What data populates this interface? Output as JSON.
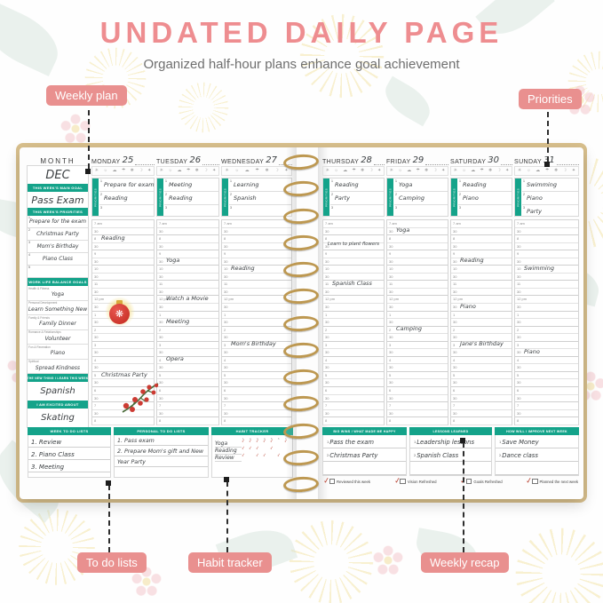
{
  "header": {
    "title": "UNDATED DAILY PAGE",
    "subtitle": "Organized half-hour plans enhance goal achievement"
  },
  "callouts": {
    "weekly_plan": "Weekly plan",
    "priorities": "Priorities",
    "to_do_lists": "To do lists",
    "habit_tracker": "Habit tracker",
    "weekly_recap": "Weekly recap"
  },
  "colors": {
    "teal_accent": "#14a38a",
    "pink_accent": "#e9908f",
    "title_pink": "#ee8d90",
    "check_red": "#b8402f",
    "spiral_gold": "#bd9851"
  },
  "planner": {
    "month_label": "MONTH",
    "month_value": "DEC",
    "priorities_tab": "PRIORITIES",
    "weather_icons": [
      "sun",
      "bright-sun",
      "cloud",
      "umbrella",
      "snowflake",
      "moon",
      "star"
    ],
    "time_slots": [
      "7 am",
      "30",
      "8",
      "30",
      "9",
      "30",
      "10",
      "30",
      "11",
      "30",
      "12 pm",
      "30",
      "1",
      "30",
      "2",
      "30",
      "3",
      "30",
      "4",
      "30",
      "5",
      "30",
      "6",
      "30",
      "7",
      "30",
      "8"
    ],
    "sidebar": {
      "main_goal_header": "THIS WEEK'S MAIN GOAL",
      "main_goal": "Pass Exam",
      "priorities_header": "THIS WEEK'S PRIORITIES",
      "priorities": [
        "Prepare for the exam",
        "Christmas Party",
        "Mom's Birthday",
        "Piano Class",
        ""
      ],
      "balance_header": "WORK LIFE BALANCE GOALS",
      "balance_goals": [
        {
          "category": "Health & Fitness",
          "value": "Yoga"
        },
        {
          "category": "Personal Development",
          "value": "Learn Something New"
        },
        {
          "category": "Family & Friends",
          "value": "Family Dinner"
        },
        {
          "category": "Romance & Relationships",
          "value": "Volunteer"
        },
        {
          "category": "Fun & Recreation",
          "value": "Piano"
        },
        {
          "category": "Spiritual",
          "value": "Spread Kindness"
        }
      ],
      "learn_header": "THE NEW THING I LEARN THIS WEEK",
      "learn_value": "Spanish",
      "excited_header": "I AM EXCITED ABOUT",
      "excited_value": "Skating"
    },
    "days": [
      {
        "name": "MONDAY",
        "date": "25",
        "priorities": [
          "Prepare for exam",
          "Reading",
          ""
        ],
        "events": [
          {
            "slot": 2,
            "time": "8 am",
            "label": "Reading"
          },
          {
            "slot": 20,
            "time": "5 pm",
            "label": "Christmas Party"
          }
        ]
      },
      {
        "name": "TUESDAY",
        "date": "26",
        "priorities": [
          "Meeting",
          "Reading",
          ""
        ],
        "events": [
          {
            "slot": 5,
            "time": "9:30 am",
            "label": "Yoga"
          },
          {
            "slot": 10,
            "time": "12 pm",
            "label": "Watch a Movie"
          },
          {
            "slot": 13,
            "time": "1:30 pm",
            "label": "Meeting"
          },
          {
            "slot": 18,
            "time": "4 pm",
            "label": "Opera"
          }
        ]
      },
      {
        "name": "WEDNESDAY",
        "date": "27",
        "priorities": [
          "Learning",
          "Spanish",
          ""
        ],
        "events": [
          {
            "slot": 6,
            "time": "10 am",
            "label": "Reading"
          },
          {
            "slot": 16,
            "time": "3 pm",
            "label": "Mom's Birthday"
          }
        ]
      },
      {
        "name": "THURSDAY",
        "date": "28",
        "priorities": [
          "Reading",
          "Party",
          ""
        ],
        "events": [
          {
            "slot": 3,
            "time": "8:30 am",
            "label": "Learn to plant flowers",
            "small": true
          },
          {
            "slot": 8,
            "time": "11 am",
            "label": "Spanish Class"
          }
        ]
      },
      {
        "name": "FRIDAY",
        "date": "29",
        "priorities": [
          "Yoga",
          "Camping",
          ""
        ],
        "events": [
          {
            "slot": 1,
            "time": "7:30 am",
            "label": "Yoga"
          },
          {
            "slot": 14,
            "time": "2 pm",
            "label": "Camping"
          }
        ]
      },
      {
        "name": "SATURDAY",
        "date": "30",
        "priorities": [
          "Reading",
          "Piano",
          ""
        ],
        "events": [
          {
            "slot": 5,
            "time": "9:30 am",
            "label": "Reading"
          },
          {
            "slot": 11,
            "time": "12:30 pm",
            "label": "Piano"
          },
          {
            "slot": 16,
            "time": "3 pm",
            "label": "Jane's Birthday"
          }
        ]
      },
      {
        "name": "SUNDAY",
        "date": "31",
        "priorities": [
          "Swimming",
          "Piano",
          "Party"
        ],
        "events": [
          {
            "slot": 6,
            "time": "10 am",
            "label": "Swimming"
          },
          {
            "slot": 17,
            "time": "3:30 pm",
            "label": "Piano"
          }
        ]
      }
    ],
    "stickers": [
      "christmas-ornament",
      "berry-sprig"
    ],
    "bottom_left": {
      "week_todo_header": "WEEK TO DO LISTS",
      "week_todo": [
        "Review",
        "Piano Class",
        "Meeting"
      ],
      "personal_todo_header": "PERSONAL TO DO LISTS",
      "personal_todo": [
        "Pass exam",
        "Prepare Mom's gift and New Year Party"
      ],
      "habit_header": "HABIT TRACKER",
      "habit_day_numbers": [
        "1",
        "2",
        "3",
        "4",
        "5",
        "6",
        "7"
      ],
      "habits": [
        {
          "name": "Yoga",
          "checks": [
            1,
            1,
            1,
            1,
            1,
            0,
            1
          ]
        },
        {
          "name": "Reading",
          "checks": [
            1,
            1,
            1,
            0,
            1,
            0,
            0
          ]
        },
        {
          "name": "Review",
          "checks": [
            1,
            0,
            1,
            1,
            0,
            1,
            0
          ]
        },
        {
          "name": "",
          "checks": [
            0,
            0,
            0,
            0,
            0,
            0,
            0
          ]
        },
        {
          "name": "",
          "checks": [
            0,
            0,
            0,
            0,
            0,
            0,
            0
          ]
        }
      ]
    },
    "bottom_right": {
      "big_wins_header": "BIG WINS / WHAT MADE ME HAPPY",
      "big_wins": [
        "Pass the exam",
        "Christmas Party"
      ],
      "lessons_header": "LESSONS LEARNED",
      "lessons": [
        "Leadership lessons",
        "Spanish Class"
      ],
      "improve_header": "HOW WILL I IMPROVE NEXT WEEK",
      "improve": [
        "Save Money",
        "Dance class"
      ],
      "review_checks": [
        {
          "label": "Reviewed this week",
          "checked": true
        },
        {
          "label": "Vision Refreshed",
          "checked": true
        },
        {
          "label": "Goals Refreshed",
          "checked": true
        },
        {
          "label": "Planned the next week",
          "checked": true
        }
      ]
    }
  }
}
